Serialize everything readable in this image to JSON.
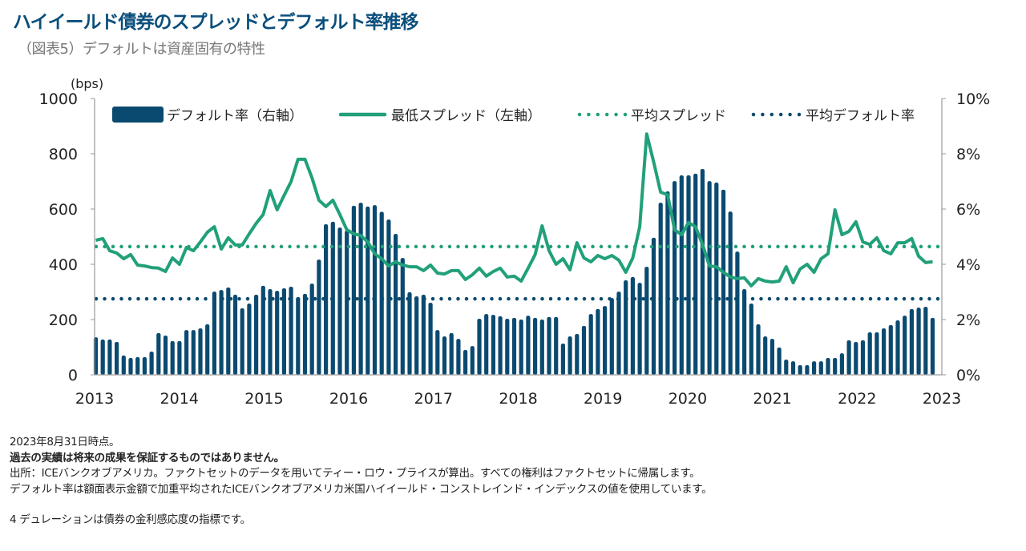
{
  "header": {
    "title": "ハイイールド債券のスプレッドとデフォルト率推移",
    "subtitle": "（図表5）デフォルトは資産固有の特性"
  },
  "chart_data": {
    "type": "bar+line",
    "left_axis": {
      "unit_label": "(bps)",
      "ylim": [
        0,
        1000
      ],
      "ticks": [
        "0",
        "200",
        "400",
        "600",
        "800",
        "1000"
      ],
      "tick_values": [
        0,
        200,
        400,
        600,
        800,
        1000
      ]
    },
    "right_axis": {
      "ylim": [
        0,
        10
      ],
      "ticks": [
        "0%",
        "2%",
        "4%",
        "6%",
        "8%",
        "10%"
      ],
      "tick_values": [
        0,
        2,
        4,
        6,
        8,
        10
      ]
    },
    "x_ticks": [
      "2013",
      "2014",
      "2015",
      "2016",
      "2017",
      "2018",
      "2019",
      "2020",
      "2021",
      "2022",
      "2023"
    ],
    "grid": false,
    "legend_position": "top",
    "legend": [
      "デフォルト率（右軸）",
      "最低スプレッド（左軸）",
      "平均スプレッド",
      "平均デフォルト率"
    ],
    "months": [
      "2013-01",
      "2013-02",
      "2013-03",
      "2013-04",
      "2013-05",
      "2013-06",
      "2013-07",
      "2013-08",
      "2013-09",
      "2013-10",
      "2013-11",
      "2013-12",
      "2014-01",
      "2014-02",
      "2014-03",
      "2014-04",
      "2014-05",
      "2014-06",
      "2014-07",
      "2014-08",
      "2014-09",
      "2014-10",
      "2014-11",
      "2014-12",
      "2015-01",
      "2015-02",
      "2015-03",
      "2015-04",
      "2015-05",
      "2015-06",
      "2015-07",
      "2015-08",
      "2015-09",
      "2015-10",
      "2015-11",
      "2015-12",
      "2016-01",
      "2016-02",
      "2016-03",
      "2016-04",
      "2016-05",
      "2016-06",
      "2016-07",
      "2016-08",
      "2016-09",
      "2016-10",
      "2016-11",
      "2016-12",
      "2017-01",
      "2017-02",
      "2017-03",
      "2017-04",
      "2017-05",
      "2017-06",
      "2017-07",
      "2017-08",
      "2017-09",
      "2017-10",
      "2017-11",
      "2017-12",
      "2018-01",
      "2018-02",
      "2018-03",
      "2018-04",
      "2018-05",
      "2018-06",
      "2018-07",
      "2018-08",
      "2018-09",
      "2018-10",
      "2018-11",
      "2018-12",
      "2019-01",
      "2019-02",
      "2019-03",
      "2019-04",
      "2019-05",
      "2019-06",
      "2019-07",
      "2019-08",
      "2019-09",
      "2019-10",
      "2019-11",
      "2019-12",
      "2020-01",
      "2020-02",
      "2020-03",
      "2020-04",
      "2020-05",
      "2020-06",
      "2020-07",
      "2020-08",
      "2020-09",
      "2020-10",
      "2020-11",
      "2020-12",
      "2021-01",
      "2021-02",
      "2021-03",
      "2021-04",
      "2021-05",
      "2021-06",
      "2021-07",
      "2021-08",
      "2021-09",
      "2021-10",
      "2021-11",
      "2021-12",
      "2022-01",
      "2022-02",
      "2022-03",
      "2022-04",
      "2022-05",
      "2022-06",
      "2022-07",
      "2022-08",
      "2022-09",
      "2022-10",
      "2022-11",
      "2022-12",
      "2023-01"
    ],
    "series": [
      {
        "name": "デフォルト率（右軸）",
        "type": "bar",
        "axis": "right",
        "color": "#0b4a70",
        "values": [
          1.36,
          1.28,
          1.28,
          1.19,
          0.7,
          0.61,
          0.64,
          0.64,
          0.84,
          1.51,
          1.42,
          1.22,
          1.22,
          1.62,
          1.62,
          1.68,
          1.83,
          3.01,
          3.07,
          3.16,
          2.9,
          2.41,
          2.58,
          2.9,
          3.22,
          3.1,
          3.04,
          3.13,
          3.19,
          2.81,
          2.93,
          3.3,
          4.17,
          5.45,
          5.54,
          5.33,
          5.22,
          6.12,
          6.23,
          6.09,
          6.14,
          5.9,
          5.62,
          5.1,
          4.23,
          2.99,
          2.84,
          2.9,
          2.61,
          1.62,
          1.39,
          1.51,
          1.3,
          0.9,
          1.04,
          2.03,
          2.2,
          2.17,
          2.12,
          2.03,
          2.06,
          2.0,
          2.14,
          2.06,
          2.0,
          2.09,
          2.09,
          1.13,
          1.39,
          1.48,
          1.77,
          2.2,
          2.38,
          2.49,
          2.78,
          3.01,
          3.42,
          3.54,
          3.33,
          3.91,
          4.96,
          6.23,
          6.64,
          7.01,
          7.22,
          7.22,
          7.28,
          7.45,
          7.01,
          6.96,
          6.7,
          5.91,
          4.46,
          3.1,
          2.58,
          1.83,
          1.39,
          1.3,
          0.99,
          0.55,
          0.49,
          0.35,
          0.35,
          0.49,
          0.49,
          0.61,
          0.61,
          0.78,
          1.25,
          1.19,
          1.25,
          1.54,
          1.54,
          1.68,
          1.8,
          1.97,
          2.14,
          2.38,
          2.43,
          2.46,
          2.06
        ]
      },
      {
        "name": "最低スプレッド（左軸）",
        "type": "line",
        "axis": "left",
        "color": "#21a07a",
        "values": [
          487,
          493,
          449,
          441,
          420,
          435,
          397,
          394,
          388,
          386,
          374,
          423,
          400,
          461,
          449,
          481,
          516,
          536,
          455,
          496,
          470,
          470,
          510,
          548,
          580,
          667,
          597,
          649,
          699,
          780,
          780,
          713,
          632,
          609,
          632,
          580,
          525,
          510,
          504,
          481,
          438,
          420,
          394,
          409,
          397,
          391,
          391,
          377,
          397,
          368,
          365,
          377,
          377,
          345,
          362,
          386,
          357,
          374,
          386,
          354,
          357,
          339,
          386,
          435,
          539,
          449,
          400,
          420,
          380,
          478,
          423,
          409,
          432,
          420,
          432,
          415,
          371,
          423,
          536,
          872,
          770,
          661,
          652,
          525,
          507,
          551,
          536,
          472,
          394,
          391,
          371,
          354,
          348,
          351,
          322,
          348,
          339,
          336,
          339,
          391,
          333,
          383,
          400,
          371,
          420,
          438,
          597,
          507,
          519,
          554,
          481,
          472,
          496,
          449,
          438,
          478,
          478,
          493,
          429,
          406,
          409
        ]
      },
      {
        "name": "平均スプレッド",
        "type": "hline",
        "axis": "left",
        "color": "#21a07a",
        "value": 464
      },
      {
        "name": "平均デフォルト率",
        "type": "hline",
        "axis": "right",
        "color": "#0b4a70",
        "value": 2.75
      }
    ]
  },
  "notes": {
    "date": "2023年8月31日時点。",
    "disclaimer": "過去の実績は将来の成果を保証するものではありません。",
    "source": "出所：ICEバンクオブアメリカ。ファクトセットのデータを用いてティー・ロウ・プライスが算出。すべての権利はファクトセットに帰属します。",
    "method": "デフォルト率は額面表示金額で加重平均されたICEバンクオブアメリカ米国ハイイールド・コンストレインド・インデックスの値を使用しています。",
    "footnote": "4 デュレーションは債券の金利感応度の指標です。"
  }
}
